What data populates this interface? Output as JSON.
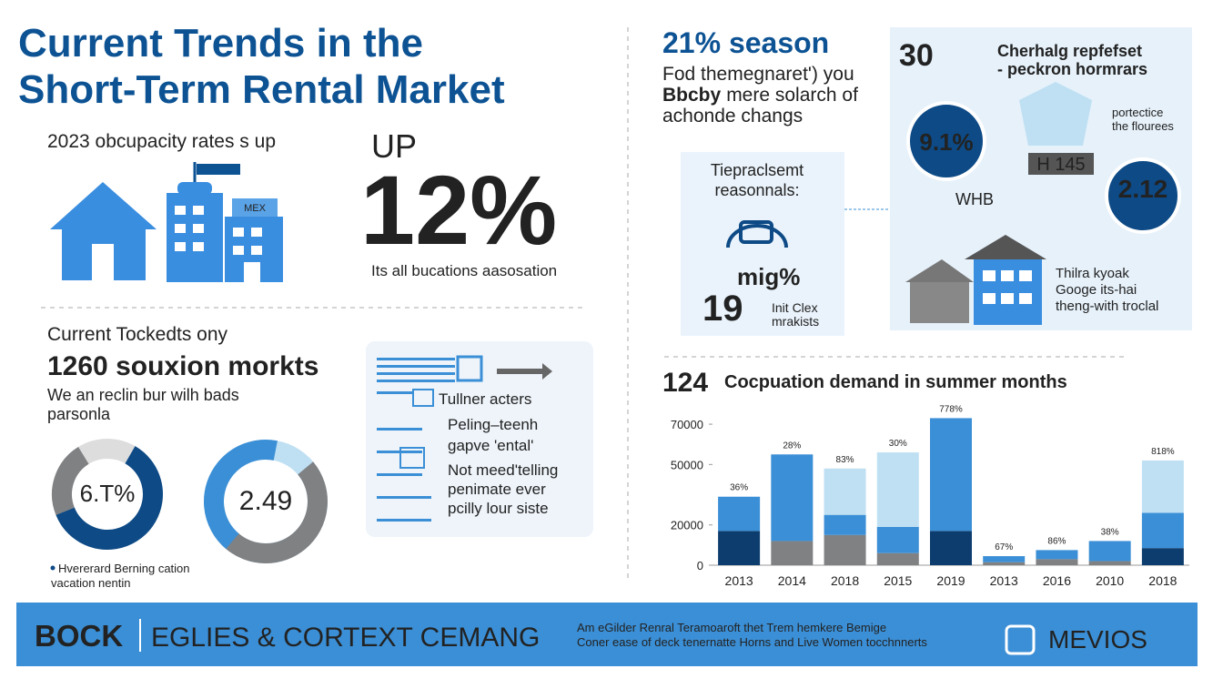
{
  "title_lines": [
    "Current Trends in the",
    "Short-Term Rental Market"
  ],
  "occupancy": {
    "heading": "2023 obcupacity rates s up",
    "sign": "MEX",
    "up": "UP",
    "big": "12%",
    "caption": "Its all bucations aasosation"
  },
  "markets": {
    "heading": "Current Tockedts ony",
    "highlight": "1260 souxion morkts",
    "desc_lines": [
      "We an reclin bur wilh bads",
      "parsonla"
    ],
    "donuts": [
      {
        "label": "6.T%"
      },
      {
        "label": "2.49"
      }
    ],
    "legend_lines": [
      "Hvererard Berning cation",
      "vacation nentin"
    ]
  },
  "list": {
    "items": [
      [
        "Tullner acters"
      ],
      [
        "Peling–teenh",
        "gapve 'ental'"
      ],
      [
        "Not meed'telling",
        "penimate ever",
        "pcilly lour siste"
      ]
    ]
  },
  "season": {
    "heading": "21% season",
    "first": "Fod themegnaret') you",
    "bold": "Bbcby",
    "second": "mere solarch of",
    "third": "achonde changs"
  },
  "replacement": {
    "lines": [
      "Tiepraclsemt",
      "reasonnals:"
    ],
    "figure": "mig%",
    "number": "19",
    "note_lines": [
      "Init Clex",
      "mrakists"
    ]
  },
  "panel": {
    "number": "30",
    "heading_lines": [
      "Cherhalg repfefset",
      "- peckron hormrars"
    ],
    "badge1": "9.1%",
    "side_lines": [
      "portectice",
      "the flourees"
    ],
    "tag": "H 145",
    "mid": "WHB",
    "badge2": "2.12",
    "desc_lines": [
      "Thilra kyoak",
      "Googe its-hai",
      "theng-with troclal"
    ]
  },
  "chart_data": {
    "type": "bar",
    "stacked": true,
    "title_number": "124",
    "title": "Cocpuation demand in summer months",
    "categories": [
      "2013",
      "2014",
      "2018",
      "2015",
      "2019",
      "2013",
      "2016",
      "2010",
      "2018"
    ],
    "series": [
      {
        "color": "#0d3d6e",
        "values": [
          17000,
          0,
          0,
          0,
          17000,
          0,
          0,
          0,
          8500
        ]
      },
      {
        "color": "#7f8183",
        "values": [
          0,
          12000,
          15000,
          6000,
          0,
          1500,
          3000,
          2000,
          0
        ]
      },
      {
        "color": "#3b8fd6",
        "values": [
          17000,
          43000,
          10000,
          13000,
          56000,
          3000,
          4500,
          10000,
          17500
        ]
      },
      {
        "color": "#bfe0f3",
        "values": [
          0,
          0,
          23000,
          37000,
          0,
          0,
          0,
          0,
          26000
        ]
      }
    ],
    "bar_labels": [
      "36%",
      "28%",
      "83%",
      "30%",
      "778%",
      "67%",
      "86%",
      "38%",
      "818%"
    ],
    "ylim": [
      0,
      75000
    ],
    "yticks": [
      0,
      20000,
      50000,
      70000
    ]
  },
  "footer": {
    "brand": "BOCK",
    "headline": "EGLIES & CORTEXT CEMANG",
    "lines": [
      "Am eGilder Renral Teramoaroft thet Trem hemkere Bemige",
      "Coner ease of deck tenernatte Horns and Live Women tocchnnerts"
    ],
    "logo": "MEVIOS"
  }
}
